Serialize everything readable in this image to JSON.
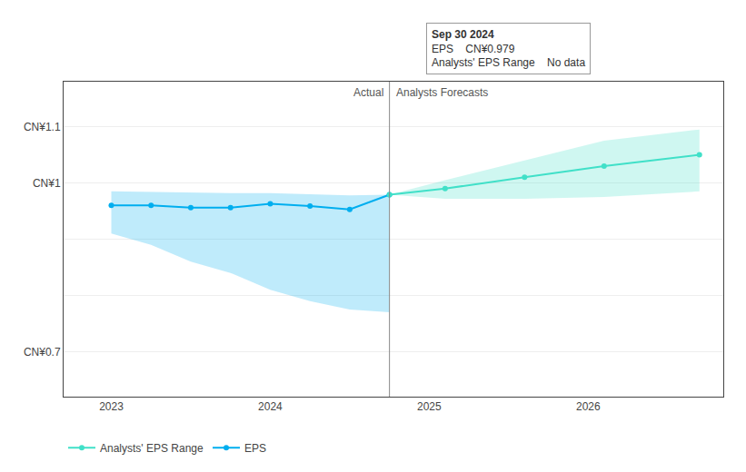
{
  "chart_data": {
    "type": "line",
    "series": [
      {
        "name": "EPS",
        "color": "#00aeef",
        "marker": "circle",
        "x": [
          2023.0,
          2023.25,
          2023.5,
          2023.75,
          2024.0,
          2024.25,
          2024.5,
          2024.75
        ],
        "values": [
          0.96,
          0.96,
          0.956,
          0.956,
          0.963,
          0.959,
          0.953,
          0.979
        ],
        "upper": [
          0.985,
          0.984,
          0.982,
          0.982,
          0.982,
          0.98,
          0.978,
          0.979
        ],
        "lower": [
          0.91,
          0.89,
          0.86,
          0.84,
          0.81,
          0.79,
          0.775,
          0.77
        ]
      },
      {
        "name": "Analysts' EPS Range",
        "color": "#40e0c8",
        "marker": "circle",
        "x": [
          2024.75,
          2025.1,
          2025.6,
          2026.1,
          2026.7
        ],
        "values": [
          0.979,
          0.99,
          1.01,
          1.03,
          1.05
        ],
        "upper": [
          0.979,
          1.005,
          1.04,
          1.075,
          1.095
        ],
        "lower": [
          0.979,
          0.972,
          0.972,
          0.975,
          0.985
        ]
      }
    ],
    "divider": 2024.75,
    "divider_labels": [
      "Actual",
      "Analysts Forecasts"
    ],
    "tooltip": {
      "title": "Sep 30 2024",
      "rows": [
        {
          "label": "EPS",
          "value": "CN¥0.979"
        },
        {
          "label": "Analysts' EPS Range",
          "value": "No data"
        }
      ]
    },
    "xlim": [
      2022.7,
      2026.85
    ],
    "xticks": [
      2023,
      2024,
      2025,
      2026
    ],
    "ylim": [
      0.62,
      1.18
    ],
    "yticks": [
      {
        "value": 0.7,
        "label": "CN¥0.7"
      },
      {
        "value": 0.8,
        "label": null
      },
      {
        "value": 0.9,
        "label": null
      },
      {
        "value": 1.0,
        "label": "CN¥1"
      },
      {
        "value": 1.1,
        "label": "CN¥1.1"
      }
    ],
    "grid": true,
    "legend": "bottom"
  }
}
